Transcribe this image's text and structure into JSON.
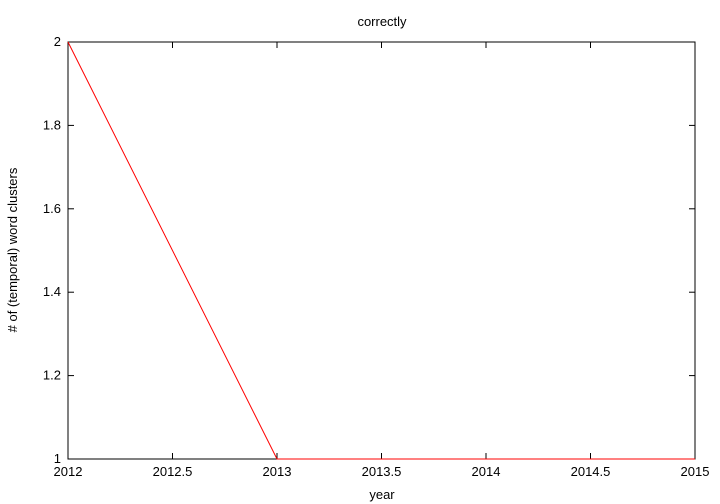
{
  "chart_data": {
    "type": "line",
    "title": "correctly",
    "xlabel": "year",
    "ylabel": "# of (temporal) word clusters",
    "xlim": [
      2012,
      2015
    ],
    "ylim": [
      1,
      2
    ],
    "xticks": [
      "2012",
      "2012.5",
      "2013",
      "2013.5",
      "2014",
      "2014.5",
      "2015"
    ],
    "yticks": [
      "1",
      "1.2",
      "1.4",
      "1.6",
      "1.8",
      "2"
    ],
    "grid": false,
    "series": [
      {
        "color": "#ff0000",
        "x": [
          2012,
          2013,
          2014,
          2015
        ],
        "y": [
          2,
          1,
          1,
          1
        ]
      }
    ]
  }
}
